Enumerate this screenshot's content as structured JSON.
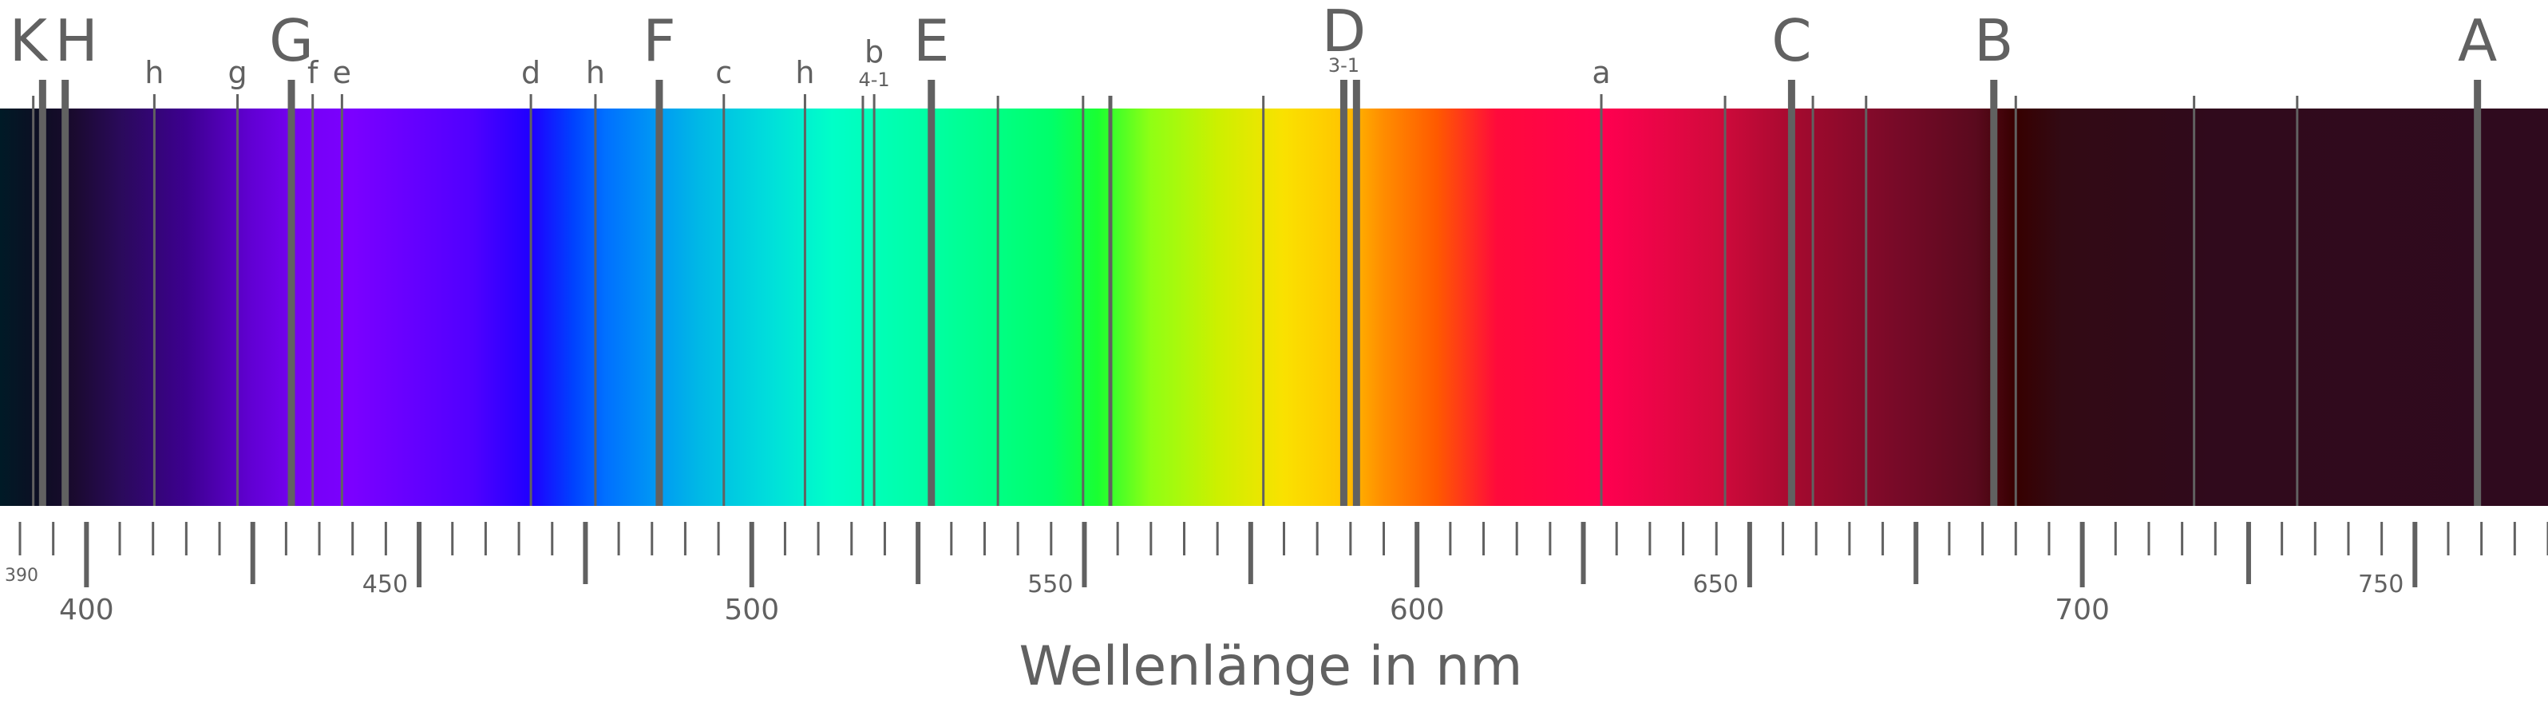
{
  "axis": {
    "title": "Wellenlänge in nm",
    "range_nm": [
      387,
      770
    ],
    "major_labels": [
      {
        "value": 400,
        "text": "400",
        "tier": "major"
      },
      {
        "value": 450,
        "text": "450",
        "tier": "mid"
      },
      {
        "value": 500,
        "text": "500",
        "tier": "major"
      },
      {
        "value": 550,
        "text": "550",
        "tier": "mid"
      },
      {
        "value": 600,
        "text": "600",
        "tier": "major"
      },
      {
        "value": 650,
        "text": "650",
        "tier": "mid"
      },
      {
        "value": 700,
        "text": "700",
        "tier": "major"
      },
      {
        "value": 750,
        "text": "750",
        "tier": "mid"
      },
      {
        "value": 390,
        "text": "390",
        "tier": "small"
      }
    ],
    "tick_step_nm": 5,
    "tick_color": "#616161"
  },
  "spectrum": {
    "gradient_stops": [
      {
        "nm": 387,
        "color": "#001a26"
      },
      {
        "nm": 393,
        "color": "#0d0e23"
      },
      {
        "nm": 398,
        "color": "#1a0a2e"
      },
      {
        "nm": 405,
        "color": "#2a0a5a"
      },
      {
        "nm": 415,
        "color": "#3d0090"
      },
      {
        "nm": 425,
        "color": "#6200d4"
      },
      {
        "nm": 432,
        "color": "#7600f5"
      },
      {
        "nm": 440,
        "color": "#7b00ff"
      },
      {
        "nm": 458,
        "color": "#5000ff"
      },
      {
        "nm": 467,
        "color": "#1e00ff"
      },
      {
        "nm": 473,
        "color": "#0040ff"
      },
      {
        "nm": 478,
        "color": "#0070ff"
      },
      {
        "nm": 485,
        "color": "#0095f5"
      },
      {
        "nm": 492,
        "color": "#00b8e6"
      },
      {
        "nm": 502,
        "color": "#00dcdc"
      },
      {
        "nm": 512,
        "color": "#00ffc8"
      },
      {
        "nm": 528,
        "color": "#00ffa0"
      },
      {
        "nm": 545,
        "color": "#00ff6a"
      },
      {
        "nm": 552,
        "color": "#1aff32"
      },
      {
        "nm": 560,
        "color": "#90ff14"
      },
      {
        "nm": 570,
        "color": "#ccf000"
      },
      {
        "nm": 580,
        "color": "#fae100"
      },
      {
        "nm": 588,
        "color": "#ffc800"
      },
      {
        "nm": 595,
        "color": "#ff8c00"
      },
      {
        "nm": 603,
        "color": "#ff5a00"
      },
      {
        "nm": 612,
        "color": "#ff0a3c"
      },
      {
        "nm": 628,
        "color": "#ff0050"
      },
      {
        "nm": 645,
        "color": "#d20a3c"
      },
      {
        "nm": 658,
        "color": "#a00a2e"
      },
      {
        "nm": 672,
        "color": "#780a28"
      },
      {
        "nm": 684,
        "color": "#5a0a1e"
      },
      {
        "nm": 690,
        "color": "#370000"
      },
      {
        "nm": 697,
        "color": "#320a14"
      },
      {
        "nm": 720,
        "color": "#300a1c"
      },
      {
        "nm": 770,
        "color": "#2f0a1e"
      }
    ]
  },
  "fraunhofer_lines": [
    {
      "nm": 392,
      "label": "",
      "weight": "thin"
    },
    {
      "nm": 393.4,
      "label": "K",
      "weight": "thick",
      "size": "large"
    },
    {
      "nm": 396.8,
      "label": "H",
      "weight": "thick",
      "size": "large"
    },
    {
      "nm": 410.2,
      "label": "h",
      "weight": "thin",
      "size": "small"
    },
    {
      "nm": 422.7,
      "label": "g",
      "weight": "thin",
      "size": "small"
    },
    {
      "nm": 430.8,
      "label": "G",
      "weight": "thick",
      "size": "large"
    },
    {
      "nm": 434.0,
      "label": "f",
      "weight": "thin",
      "size": "small"
    },
    {
      "nm": 438.4,
      "label": "e",
      "weight": "thin",
      "size": "small"
    },
    {
      "nm": 466.8,
      "label": "d",
      "weight": "thin",
      "size": "small"
    },
    {
      "nm": 476.5,
      "label": "h",
      "weight": "thin",
      "size": "small"
    },
    {
      "nm": 486.1,
      "label": "F",
      "weight": "thick",
      "size": "large"
    },
    {
      "nm": 495.8,
      "label": "c",
      "weight": "thin",
      "size": "small"
    },
    {
      "nm": 508.0,
      "label": "h",
      "weight": "thin",
      "size": "small"
    },
    {
      "nm": 516.7,
      "label": "",
      "weight": "thin"
    },
    {
      "nm": 518.4,
      "label": "b",
      "sublabel": "4-1",
      "weight": "thin",
      "size": "small"
    },
    {
      "nm": 527.0,
      "label": "E",
      "weight": "thick",
      "size": "large"
    },
    {
      "nm": 537.0,
      "label": "",
      "weight": "thin"
    },
    {
      "nm": 549.8,
      "label": "",
      "weight": "thin"
    },
    {
      "nm": 553.9,
      "label": "",
      "weight": "medium"
    },
    {
      "nm": 576.9,
      "label": "",
      "weight": "thin"
    },
    {
      "nm": 588.99,
      "label": "D",
      "sublabel": "3-1",
      "weight": "thick",
      "size": "large"
    },
    {
      "nm": 590.9,
      "label": "",
      "weight": "thick"
    },
    {
      "nm": 627.7,
      "label": "a",
      "weight": "thin",
      "size": "small"
    },
    {
      "nm": 646.3,
      "label": "",
      "weight": "thin"
    },
    {
      "nm": 656.3,
      "label": "C",
      "weight": "thick",
      "size": "large"
    },
    {
      "nm": 659.5,
      "label": "",
      "weight": "thin"
    },
    {
      "nm": 667.5,
      "label": "",
      "weight": "thin"
    },
    {
      "nm": 686.7,
      "label": "B",
      "weight": "thick",
      "size": "large"
    },
    {
      "nm": 690.0,
      "label": "",
      "weight": "thin"
    },
    {
      "nm": 716.8,
      "label": "",
      "weight": "thin"
    },
    {
      "nm": 732.3,
      "label": "",
      "weight": "thin"
    },
    {
      "nm": 759.4,
      "label": "A",
      "weight": "thick",
      "size": "large"
    }
  ],
  "colors": {
    "line": "#616161",
    "text": "#616161",
    "background": "#ffffff"
  }
}
